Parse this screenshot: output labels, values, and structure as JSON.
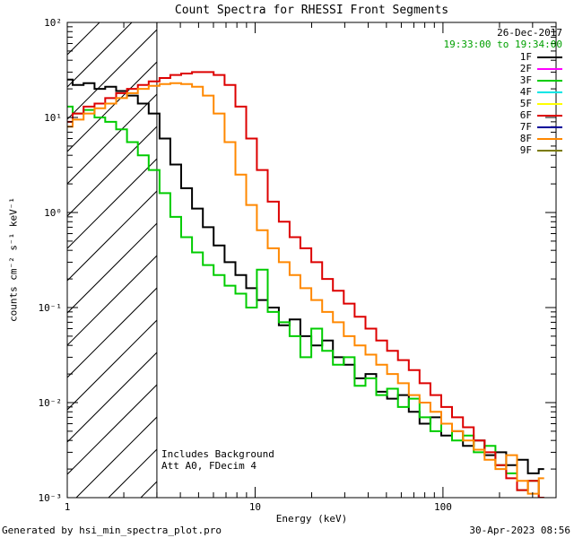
{
  "header": {
    "title": "Count Spectra for RHESSI Front Segments"
  },
  "annotations": {
    "date": "26-Dec-2017",
    "time_range": "19:33:00 to 19:34:00",
    "note_line1": "Includes Background",
    "note_line2": "Att A0, FDecim 4"
  },
  "footer": {
    "left": "Generated by hsi_min_spectra_plot.pro",
    "right": "30-Apr-2023 08:56"
  },
  "chart_data": {
    "type": "line",
    "title": "Count Spectra for RHESSI Front Segments",
    "xlabel": "Energy (keV)",
    "ylabel": "counts cm⁻² s⁻¹ keV⁻¹",
    "xscale": "log",
    "yscale": "log",
    "xlim": [
      1,
      400
    ],
    "ylim": [
      0.001,
      100
    ],
    "grid": false,
    "legend_position": "top-right",
    "hatch_region": {
      "xmin": 1,
      "xmax": 3
    },
    "xtick_values": [
      1,
      10,
      100
    ],
    "xtick_labels": [
      "1",
      "10",
      "100"
    ],
    "ytick_values": [
      100,
      10,
      1,
      0.1,
      0.01,
      0.001
    ],
    "ytick_labels": [
      "10²",
      "10¹",
      "10⁰",
      "10⁻¹",
      "10⁻²",
      "10⁻³"
    ],
    "legend": [
      {
        "label": "1F",
        "color": "#000000"
      },
      {
        "label": "2F",
        "color": "#ff00ff"
      },
      {
        "label": "3F",
        "color": "#00cc00"
      },
      {
        "label": "4F",
        "color": "#00e6e6"
      },
      {
        "label": "5F",
        "color": "#ffff00"
      },
      {
        "label": "6F",
        "color": "#dd0000"
      },
      {
        "label": "7F",
        "color": "#000099"
      },
      {
        "label": "8F",
        "color": "#ff8800"
      },
      {
        "label": "9F",
        "color": "#7a7a00"
      }
    ],
    "x": [
      1.0,
      1.14,
      1.31,
      1.49,
      1.7,
      1.95,
      2.22,
      2.54,
      2.9,
      3.31,
      3.78,
      4.32,
      4.93,
      5.63,
      6.43,
      7.35,
      8.39,
      9.58,
      10.9,
      12.5,
      14.3,
      16.3,
      18.6,
      21.3,
      24.3,
      27.7,
      31.7,
      36.2,
      41.3,
      47.2,
      53.9,
      61.5,
      70.3,
      80.2,
      91.6,
      104.6,
      119.5,
      136.5,
      155.8,
      178.0,
      203.2,
      232.1,
      265.0,
      302.7,
      345.6
    ],
    "series": [
      {
        "name": "1F",
        "color": "#000000",
        "values": [
          25,
          22,
          23,
          20,
          21,
          19,
          17,
          14,
          11,
          6,
          3.2,
          1.8,
          1.1,
          0.7,
          0.45,
          0.3,
          0.22,
          0.16,
          0.12,
          0.1,
          0.065,
          0.075,
          0.05,
          0.04,
          0.045,
          0.03,
          0.025,
          0.018,
          0.02,
          0.013,
          0.011,
          0.012,
          0.008,
          0.006,
          0.007,
          0.0045,
          0.005,
          0.0035,
          0.004,
          0.0028,
          0.003,
          0.0022,
          0.0025,
          0.0018,
          0.002
        ]
      },
      {
        "name": "3F",
        "color": "#00cc00",
        "values": [
          13,
          11,
          12,
          10,
          9,
          7.5,
          5.5,
          4.0,
          2.8,
          1.6,
          0.9,
          0.55,
          0.38,
          0.28,
          0.22,
          0.17,
          0.14,
          0.1,
          0.25,
          0.09,
          0.07,
          0.05,
          0.03,
          0.06,
          0.035,
          0.025,
          0.03,
          0.015,
          0.018,
          0.012,
          0.014,
          0.009,
          0.011,
          0.007,
          0.005,
          0.006,
          0.004,
          0.0045,
          0.003,
          0.0035,
          0.0022,
          0.0018,
          0.0012,
          0.0015,
          0.001
        ]
      },
      {
        "name": "6F",
        "color": "#dd0000",
        "values": [
          9,
          11,
          13,
          14,
          16,
          18,
          20,
          22,
          24,
          26,
          28,
          29,
          30,
          30,
          28,
          22,
          13,
          6,
          2.8,
          1.3,
          0.8,
          0.55,
          0.42,
          0.3,
          0.2,
          0.15,
          0.11,
          0.08,
          0.06,
          0.045,
          0.035,
          0.028,
          0.022,
          0.016,
          0.012,
          0.009,
          0.007,
          0.0055,
          0.004,
          0.003,
          0.0022,
          0.0016,
          0.0012,
          0.0015,
          0.001
        ]
      },
      {
        "name": "8F",
        "color": "#ff8800",
        "values": [
          8,
          9.5,
          11,
          12.5,
          14,
          16,
          18,
          20,
          21.5,
          22.5,
          23,
          22.5,
          21,
          17,
          11,
          5.5,
          2.5,
          1.2,
          0.65,
          0.42,
          0.3,
          0.22,
          0.16,
          0.12,
          0.09,
          0.07,
          0.05,
          0.04,
          0.032,
          0.025,
          0.02,
          0.016,
          0.012,
          0.01,
          0.008,
          0.006,
          0.005,
          0.004,
          0.0032,
          0.0025,
          0.002,
          0.0028,
          0.0015,
          0.0011,
          0.0016
        ]
      }
    ]
  }
}
